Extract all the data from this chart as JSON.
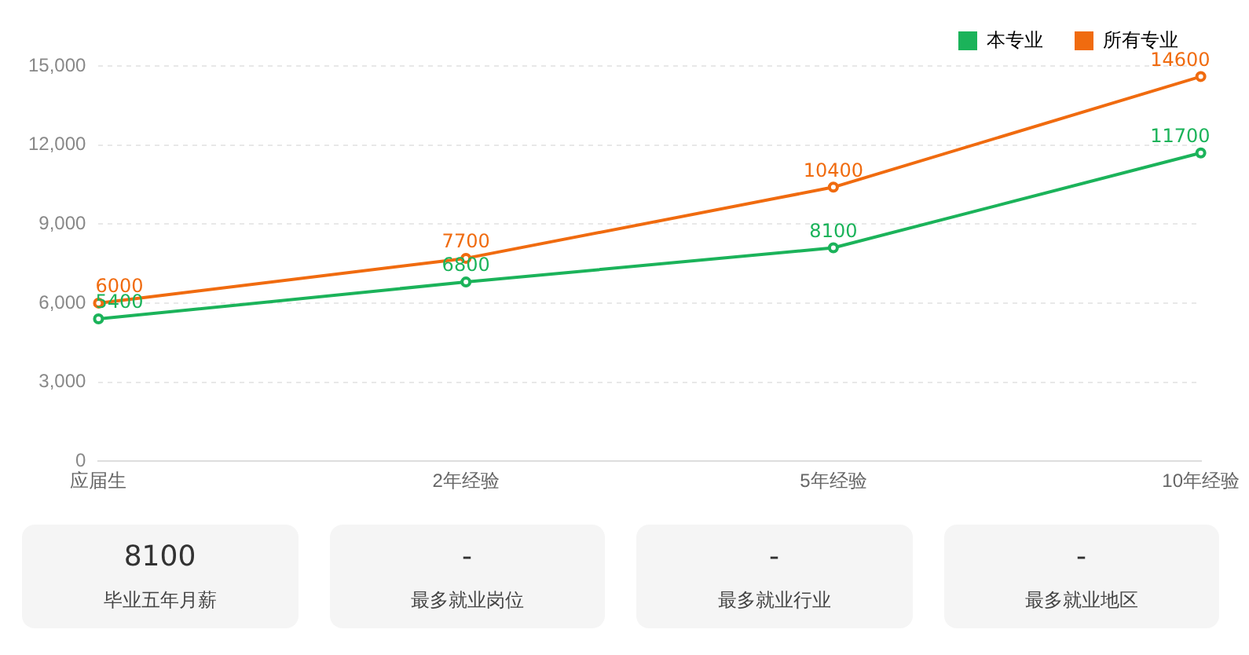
{
  "chart_data": [
    {
      "type": "line",
      "categories": [
        "应届生",
        "2年经验",
        "5年经验",
        "10年经验"
      ],
      "series": [
        {
          "name": "本专业",
          "color": "#1bb35a",
          "values": [
            5400,
            6800,
            8100,
            11700
          ]
        },
        {
          "name": "所有专业",
          "color": "#f06b0f",
          "values": [
            6000,
            7700,
            10400,
            14600
          ]
        }
      ],
      "ylim": [
        0,
        15000
      ],
      "yticks": [
        0,
        {
          "value": 3000,
          "label": "3,000"
        },
        {
          "value": 6000,
          "label": "6,000"
        },
        {
          "value": 9000,
          "label": "9,000"
        },
        {
          "value": 12000,
          "label": "12,000"
        },
        {
          "value": 15000,
          "label": "15,000"
        }
      ],
      "grid": "y",
      "legend": "top right",
      "marker": "circle",
      "data_labels": true
    },
    {
      "type": "other",
      "annotations": [
        "8100",
        "毕业五年月薪",
        "-",
        "最多就业岗位",
        "-",
        "最多就业行业",
        "-",
        "最多就业地区"
      ]
    }
  ]
}
